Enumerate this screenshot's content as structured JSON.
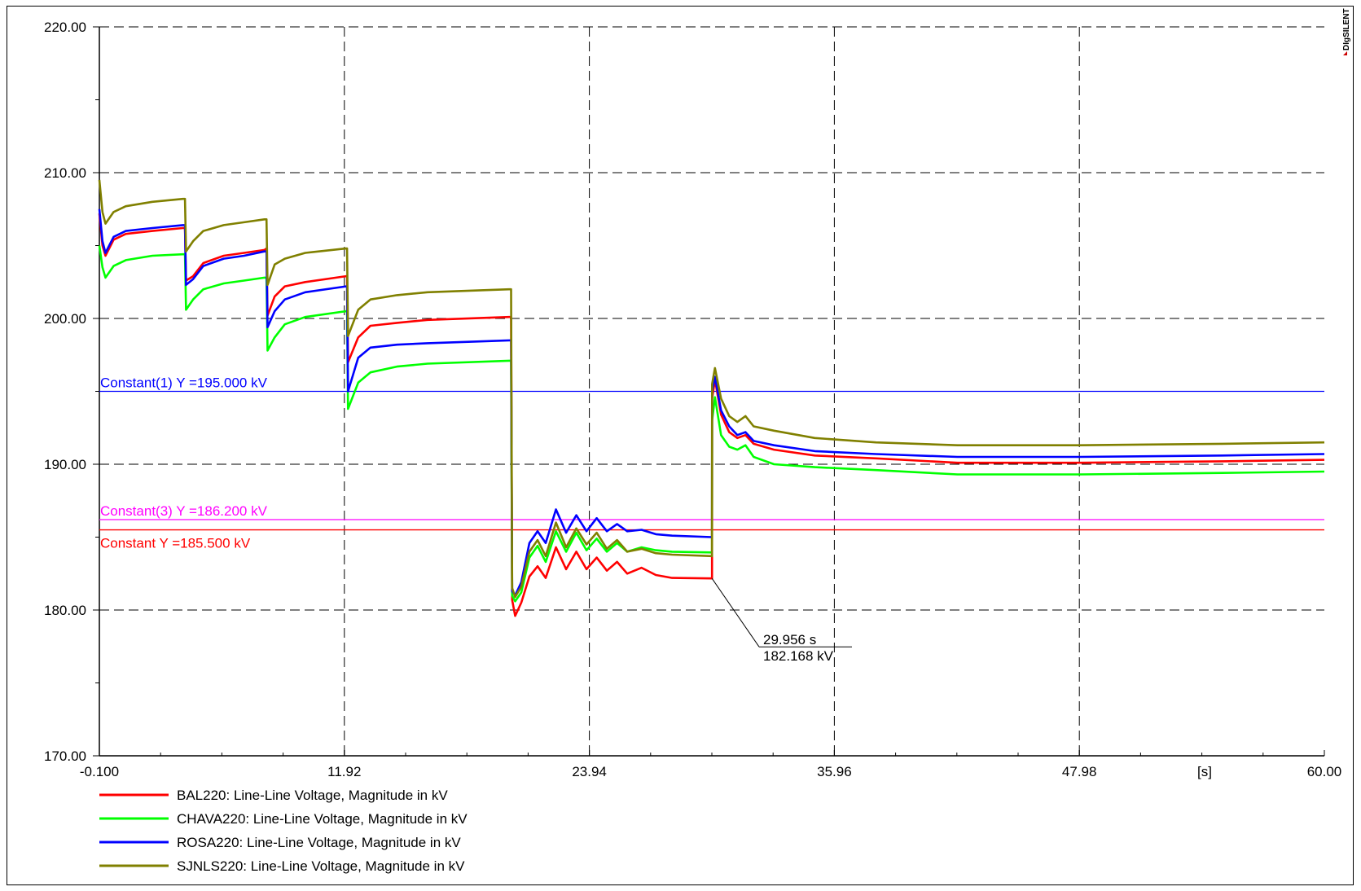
{
  "chart_data": {
    "type": "line",
    "xlabel": "",
    "ylabel": "",
    "x_unit_label": "[s]",
    "xlim": [
      -0.1,
      60.0
    ],
    "ylim": [
      170.0,
      220.0
    ],
    "x_ticks": [
      "-0.100",
      "11.92",
      "23.94",
      "35.96",
      "47.98",
      "60.00"
    ],
    "x_tick_values": [
      -0.1,
      11.92,
      23.94,
      35.96,
      47.98,
      60.0
    ],
    "y_ticks": [
      "170.00",
      "180.00",
      "190.00",
      "200.00",
      "210.00",
      "220.00"
    ],
    "y_tick_values": [
      170,
      180,
      190,
      200,
      210,
      220
    ],
    "grid": true,
    "legend_position": "bottom-left",
    "brand": "DIgSILENT",
    "constants": [
      {
        "label": "Constant(1) Y =195.000 kV",
        "y": 195.0,
        "color": "#0000ff"
      },
      {
        "label": "Constant(3) Y =186.200 kV",
        "y": 186.2,
        "color": "#ff00ff"
      },
      {
        "label": "Constant Y =185.500 kV",
        "y": 185.5,
        "color": "#ff0000"
      }
    ],
    "annotation": {
      "x": 29.956,
      "y": 182.168,
      "line1": "29.956 s",
      "line2": "182.168 kV"
    },
    "series": [
      {
        "name": "BAL220: Line-Line Voltage, Magnitude in kV",
        "color": "#ff0000",
        "points": [
          [
            -0.1,
            207.2
          ],
          [
            0.05,
            205.0
          ],
          [
            0.2,
            204.3
          ],
          [
            0.6,
            205.4
          ],
          [
            1.2,
            205.8
          ],
          [
            2.5,
            206.0
          ],
          [
            4.0,
            206.2
          ],
          [
            4.1,
            206.2
          ],
          [
            4.15,
            202.6
          ],
          [
            4.5,
            202.9
          ],
          [
            5.0,
            203.8
          ],
          [
            6.0,
            204.3
          ],
          [
            7.0,
            204.5
          ],
          [
            8.0,
            204.7
          ],
          [
            8.1,
            204.8
          ],
          [
            8.15,
            200.2
          ],
          [
            8.5,
            201.5
          ],
          [
            9.0,
            202.2
          ],
          [
            10.0,
            202.5
          ],
          [
            12.0,
            202.9
          ],
          [
            12.05,
            202.9
          ],
          [
            12.1,
            197.0
          ],
          [
            12.6,
            198.7
          ],
          [
            13.2,
            199.5
          ],
          [
            14.5,
            199.7
          ],
          [
            16.0,
            199.9
          ],
          [
            20.0,
            200.1
          ],
          [
            20.1,
            200.1
          ],
          [
            20.15,
            180.7
          ],
          [
            20.3,
            179.6
          ],
          [
            20.6,
            180.5
          ],
          [
            21.0,
            182.3
          ],
          [
            21.4,
            183.0
          ],
          [
            21.8,
            182.2
          ],
          [
            22.3,
            184.3
          ],
          [
            22.8,
            182.8
          ],
          [
            23.3,
            184.0
          ],
          [
            23.8,
            182.8
          ],
          [
            24.3,
            183.6
          ],
          [
            24.8,
            182.7
          ],
          [
            25.3,
            183.3
          ],
          [
            25.8,
            182.5
          ],
          [
            26.5,
            182.9
          ],
          [
            27.2,
            182.4
          ],
          [
            28.0,
            182.2
          ],
          [
            29.956,
            182.168
          ],
          [
            29.96,
            194.5
          ],
          [
            30.1,
            195.8
          ],
          [
            30.4,
            193.4
          ],
          [
            30.8,
            192.2
          ],
          [
            31.2,
            191.8
          ],
          [
            31.6,
            192.0
          ],
          [
            32.0,
            191.4
          ],
          [
            33.0,
            191.0
          ],
          [
            35.0,
            190.6
          ],
          [
            38.0,
            190.4
          ],
          [
            42.0,
            190.1
          ],
          [
            48.0,
            190.1
          ],
          [
            55.0,
            190.2
          ],
          [
            60.0,
            190.3
          ]
        ]
      },
      {
        "name": "CHAVA220: Line-Line Voltage, Magnitude in kV",
        "color": "#00ff00",
        "points": [
          [
            -0.1,
            205.0
          ],
          [
            0.05,
            203.5
          ],
          [
            0.2,
            202.8
          ],
          [
            0.6,
            203.6
          ],
          [
            1.2,
            204.0
          ],
          [
            2.5,
            204.3
          ],
          [
            4.0,
            204.4
          ],
          [
            4.1,
            204.4
          ],
          [
            4.15,
            200.6
          ],
          [
            4.5,
            201.3
          ],
          [
            5.0,
            202.0
          ],
          [
            6.0,
            202.4
          ],
          [
            7.0,
            202.6
          ],
          [
            8.0,
            202.8
          ],
          [
            8.1,
            202.8
          ],
          [
            8.15,
            197.8
          ],
          [
            8.5,
            198.7
          ],
          [
            9.0,
            199.6
          ],
          [
            10.0,
            200.1
          ],
          [
            12.0,
            200.5
          ],
          [
            12.05,
            200.5
          ],
          [
            12.1,
            193.8
          ],
          [
            12.6,
            195.6
          ],
          [
            13.2,
            196.3
          ],
          [
            14.5,
            196.7
          ],
          [
            16.0,
            196.9
          ],
          [
            20.0,
            197.1
          ],
          [
            20.1,
            197.1
          ],
          [
            20.15,
            181.0
          ],
          [
            20.3,
            180.6
          ],
          [
            20.6,
            181.2
          ],
          [
            21.0,
            183.6
          ],
          [
            21.4,
            184.4
          ],
          [
            21.8,
            183.3
          ],
          [
            22.3,
            185.4
          ],
          [
            22.8,
            184.0
          ],
          [
            23.3,
            185.3
          ],
          [
            23.8,
            184.1
          ],
          [
            24.3,
            184.9
          ],
          [
            24.8,
            184.0
          ],
          [
            25.3,
            184.6
          ],
          [
            25.8,
            184.0
          ],
          [
            26.5,
            184.3
          ],
          [
            27.2,
            184.1
          ],
          [
            28.0,
            184.0
          ],
          [
            29.956,
            183.95
          ],
          [
            29.96,
            193.0
          ],
          [
            30.1,
            194.6
          ],
          [
            30.4,
            192.0
          ],
          [
            30.8,
            191.2
          ],
          [
            31.2,
            191.0
          ],
          [
            31.6,
            191.3
          ],
          [
            32.0,
            190.5
          ],
          [
            33.0,
            190.0
          ],
          [
            35.0,
            189.8
          ],
          [
            38.0,
            189.6
          ],
          [
            42.0,
            189.3
          ],
          [
            48.0,
            189.3
          ],
          [
            55.0,
            189.4
          ],
          [
            60.0,
            189.5
          ]
        ]
      },
      {
        "name": "ROSA220: Line-Line Voltage, Magnitude in kV",
        "color": "#0000ff",
        "points": [
          [
            -0.1,
            207.5
          ],
          [
            0.05,
            205.3
          ],
          [
            0.2,
            204.5
          ],
          [
            0.6,
            205.6
          ],
          [
            1.2,
            206.0
          ],
          [
            2.5,
            206.2
          ],
          [
            4.0,
            206.4
          ],
          [
            4.1,
            206.4
          ],
          [
            4.15,
            202.3
          ],
          [
            4.5,
            202.7
          ],
          [
            5.0,
            203.6
          ],
          [
            6.0,
            204.1
          ],
          [
            7.0,
            204.3
          ],
          [
            8.0,
            204.6
          ],
          [
            8.1,
            204.6
          ],
          [
            8.15,
            199.4
          ],
          [
            8.5,
            200.5
          ],
          [
            9.0,
            201.3
          ],
          [
            10.0,
            201.8
          ],
          [
            12.0,
            202.2
          ],
          [
            12.05,
            202.2
          ],
          [
            12.1,
            195.0
          ],
          [
            12.6,
            197.3
          ],
          [
            13.2,
            198.0
          ],
          [
            14.5,
            198.2
          ],
          [
            16.0,
            198.3
          ],
          [
            20.0,
            198.5
          ],
          [
            20.1,
            198.5
          ],
          [
            20.15,
            181.3
          ],
          [
            20.3,
            181.0
          ],
          [
            20.6,
            181.9
          ],
          [
            21.0,
            184.6
          ],
          [
            21.4,
            185.4
          ],
          [
            21.8,
            184.6
          ],
          [
            22.3,
            186.9
          ],
          [
            22.8,
            185.3
          ],
          [
            23.3,
            186.5
          ],
          [
            23.8,
            185.4
          ],
          [
            24.3,
            186.3
          ],
          [
            24.8,
            185.4
          ],
          [
            25.3,
            185.9
          ],
          [
            25.8,
            185.4
          ],
          [
            26.5,
            185.5
          ],
          [
            27.2,
            185.2
          ],
          [
            28.0,
            185.1
          ],
          [
            29.956,
            185.0
          ],
          [
            29.96,
            195.0
          ],
          [
            30.1,
            196.0
          ],
          [
            30.4,
            193.7
          ],
          [
            30.8,
            192.6
          ],
          [
            31.2,
            192.0
          ],
          [
            31.6,
            192.2
          ],
          [
            32.0,
            191.6
          ],
          [
            33.0,
            191.3
          ],
          [
            35.0,
            190.9
          ],
          [
            38.0,
            190.7
          ],
          [
            42.0,
            190.5
          ],
          [
            48.0,
            190.5
          ],
          [
            55.0,
            190.6
          ],
          [
            60.0,
            190.7
          ]
        ]
      },
      {
        "name": "SJNLS220: Line-Line Voltage, Magnitude in kV",
        "color": "#808000",
        "points": [
          [
            -0.1,
            209.5
          ],
          [
            0.05,
            207.3
          ],
          [
            0.2,
            206.5
          ],
          [
            0.6,
            207.3
          ],
          [
            1.2,
            207.7
          ],
          [
            2.5,
            208.0
          ],
          [
            4.0,
            208.2
          ],
          [
            4.1,
            208.2
          ],
          [
            4.15,
            204.6
          ],
          [
            4.5,
            205.3
          ],
          [
            5.0,
            206.0
          ],
          [
            6.0,
            206.4
          ],
          [
            7.0,
            206.6
          ],
          [
            8.0,
            206.8
          ],
          [
            8.1,
            206.8
          ],
          [
            8.15,
            202.3
          ],
          [
            8.5,
            203.7
          ],
          [
            9.0,
            204.1
          ],
          [
            10.0,
            204.5
          ],
          [
            12.0,
            204.8
          ],
          [
            12.05,
            204.8
          ],
          [
            12.1,
            198.8
          ],
          [
            12.6,
            200.6
          ],
          [
            13.2,
            201.3
          ],
          [
            14.5,
            201.6
          ],
          [
            16.0,
            201.8
          ],
          [
            20.0,
            202.0
          ],
          [
            20.1,
            202.0
          ],
          [
            20.15,
            181.5
          ],
          [
            20.3,
            180.9
          ],
          [
            20.6,
            181.6
          ],
          [
            21.0,
            184.0
          ],
          [
            21.4,
            184.8
          ],
          [
            21.8,
            183.7
          ],
          [
            22.3,
            186.0
          ],
          [
            22.8,
            184.3
          ],
          [
            23.3,
            185.6
          ],
          [
            23.8,
            184.5
          ],
          [
            24.3,
            185.3
          ],
          [
            24.8,
            184.2
          ],
          [
            25.3,
            184.8
          ],
          [
            25.8,
            184.0
          ],
          [
            26.5,
            184.2
          ],
          [
            27.2,
            183.9
          ],
          [
            28.0,
            183.8
          ],
          [
            29.956,
            183.7
          ],
          [
            29.96,
            195.5
          ],
          [
            30.1,
            196.6
          ],
          [
            30.4,
            194.5
          ],
          [
            30.8,
            193.3
          ],
          [
            31.2,
            192.9
          ],
          [
            31.6,
            193.3
          ],
          [
            32.0,
            192.6
          ],
          [
            33.0,
            192.3
          ],
          [
            35.0,
            191.8
          ],
          [
            38.0,
            191.5
          ],
          [
            42.0,
            191.3
          ],
          [
            48.0,
            191.3
          ],
          [
            55.0,
            191.4
          ],
          [
            60.0,
            191.5
          ]
        ]
      }
    ]
  }
}
